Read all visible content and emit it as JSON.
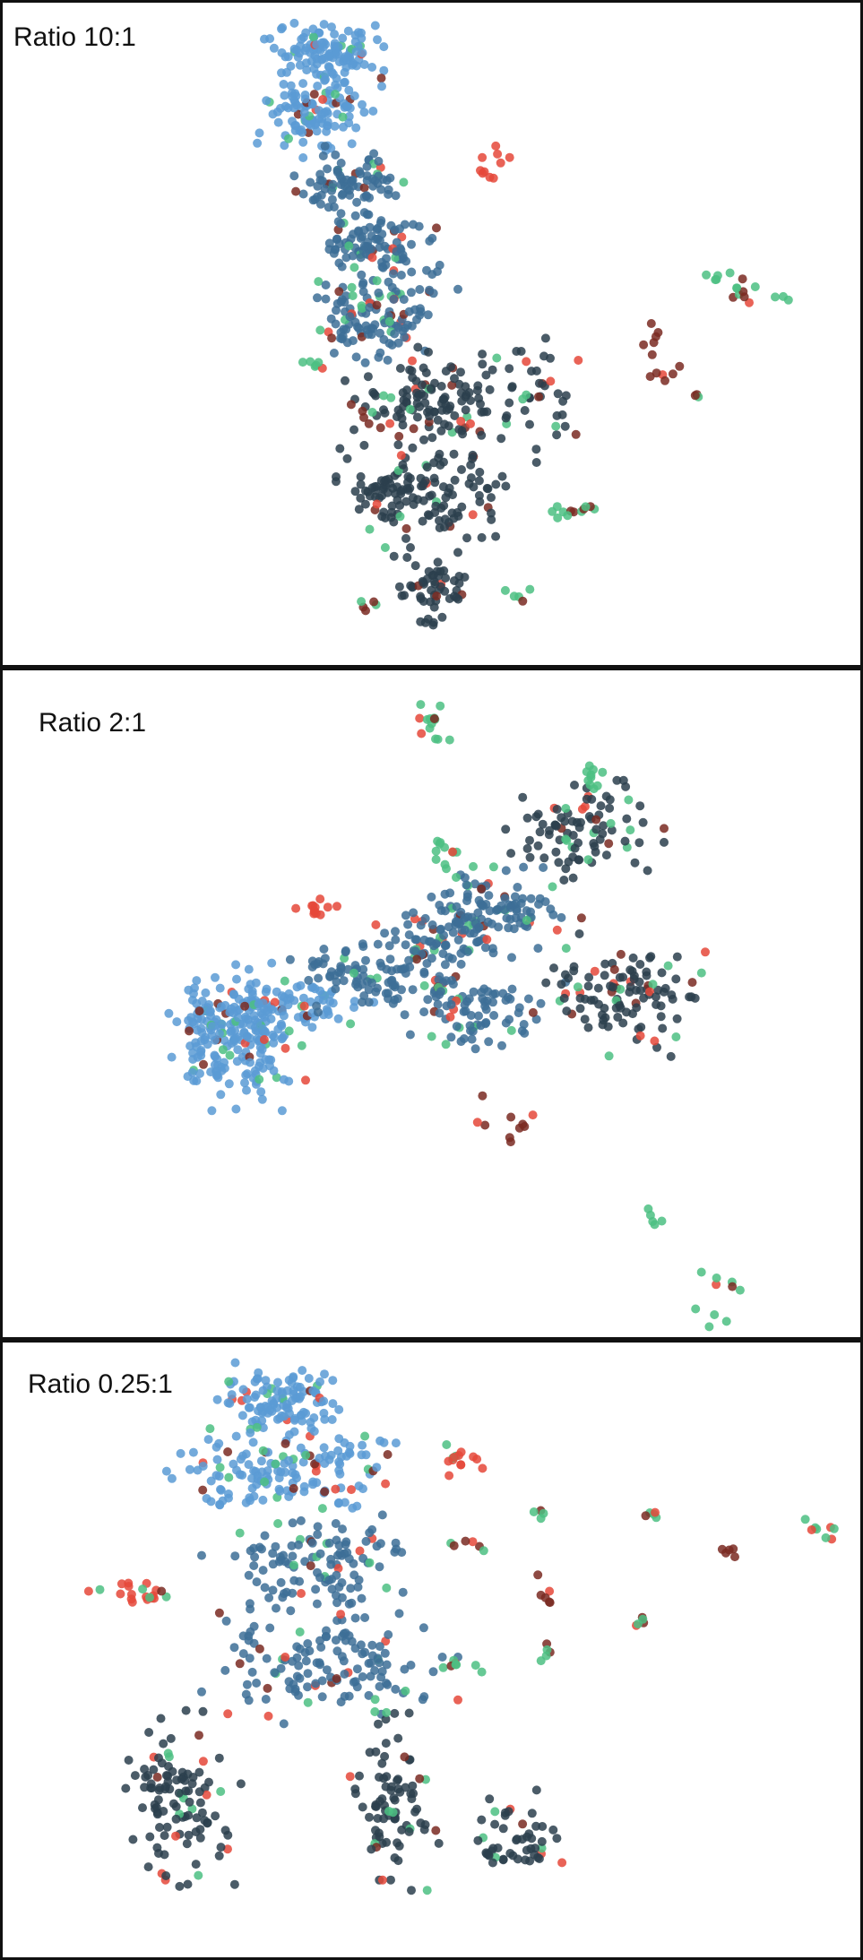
{
  "colors": {
    "early": "#5b9bd5",
    "mid": "#3d6f96",
    "late": "#2b3f4e",
    "red": "#e5483a",
    "darkred": "#7a2a22",
    "green": "#4cbf82"
  },
  "chart_data": [
    {
      "type": "scatter",
      "label": "Ratio 10:1",
      "grid": false,
      "xlim": [
        0,
        963
      ],
      "ylim": [
        0,
        745
      ],
      "clusters": [
        {
          "x": [
            300,
            420
          ],
          "y": [
            25,
            85
          ],
          "n": 110,
          "series": "early",
          "accent": 0.12
        },
        {
          "x": [
            285,
            415
          ],
          "y": [
            80,
            165
          ],
          "n": 120,
          "series": "early",
          "accent": 0.12
        },
        {
          "x": [
            320,
            440
          ],
          "y": [
            160,
            235
          ],
          "n": 80,
          "series": "mid",
          "accent": 0.12
        },
        {
          "x": [
            355,
            480
          ],
          "y": [
            230,
            310
          ],
          "n": 95,
          "series": "mid",
          "accent": 0.18
        },
        {
          "x": [
            340,
            500
          ],
          "y": [
            300,
            400
          ],
          "n": 120,
          "series": "mid",
          "accent": 0.2
        },
        {
          "x": [
            390,
            580
          ],
          "y": [
            390,
            500
          ],
          "n": 130,
          "series": "late",
          "accent": 0.14
        },
        {
          "x": [
            380,
            575
          ],
          "y": [
            495,
            600
          ],
          "n": 140,
          "series": "late",
          "accent": 0.12
        },
        {
          "x": [
            430,
            520
          ],
          "y": [
            600,
            700
          ],
          "n": 55,
          "series": "late",
          "accent": 0.1
        },
        {
          "x": [
            560,
            640
          ],
          "y": [
            375,
            520
          ],
          "n": 30,
          "series": "late",
          "accent": 0.25
        },
        {
          "x": [
            520,
            570
          ],
          "y": [
            145,
            215
          ],
          "n": 10,
          "series": "red",
          "accent": 0.1
        },
        {
          "x": [
            330,
            360
          ],
          "y": [
            395,
            410
          ],
          "n": 6,
          "series": "green",
          "accent": 0.5
        },
        {
          "x": [
            620,
            660
          ],
          "y": [
            560,
            575
          ],
          "n": 7,
          "series": "darkred",
          "accent": 0.5
        },
        {
          "x": [
            710,
            740
          ],
          "y": [
            365,
            395
          ],
          "n": 6,
          "series": "darkred",
          "accent": 0.5
        },
        {
          "x": [
            720,
            760
          ],
          "y": [
            405,
            430
          ],
          "n": 6,
          "series": "darkred",
          "accent": 0.4
        },
        {
          "x": [
            780,
            830
          ],
          "y": [
            300,
            325
          ],
          "n": 7,
          "series": "green",
          "accent": 0.5
        },
        {
          "x": [
            810,
            850
          ],
          "y": [
            300,
            345
          ],
          "n": 7,
          "series": "darkred",
          "accent": 0.5
        },
        {
          "x": [
            860,
            880
          ],
          "y": [
            325,
            335
          ],
          "n": 3,
          "series": "green",
          "accent": 0.3
        },
        {
          "x": [
            770,
            785
          ],
          "y": [
            435,
            450
          ],
          "n": 3,
          "series": "darkred",
          "accent": 0.3
        },
        {
          "x": [
            380,
            420
          ],
          "y": [
            440,
            480
          ],
          "n": 6,
          "series": "darkred",
          "accent": 0.4
        },
        {
          "x": [
            600,
            660
          ],
          "y": [
            560,
            580
          ],
          "n": 5,
          "series": "green",
          "accent": 0.4
        },
        {
          "x": [
            390,
            420
          ],
          "y": [
            665,
            685
          ],
          "n": 5,
          "series": "darkred",
          "accent": 0.3
        },
        {
          "x": [
            560,
            590
          ],
          "y": [
            650,
            675
          ],
          "n": 5,
          "series": "green",
          "accent": 0.4
        }
      ]
    },
    {
      "type": "scatter",
      "label": "Ratio 2:1",
      "grid": false,
      "xlim": [
        0,
        963
      ],
      "ylim": [
        0,
        745
      ],
      "clusters": [
        {
          "x": [
            190,
            330
          ],
          "y": [
            330,
            480
          ],
          "n": 230,
          "series": "early",
          "accent": 0.12
        },
        {
          "x": [
            250,
            420
          ],
          "y": [
            340,
            410
          ],
          "n": 60,
          "series": "early",
          "accent": 0.12
        },
        {
          "x": [
            320,
            480
          ],
          "y": [
            300,
            380
          ],
          "n": 80,
          "series": "mid",
          "accent": 0.14
        },
        {
          "x": [
            420,
            560
          ],
          "y": [
            250,
            340
          ],
          "n": 90,
          "series": "mid",
          "accent": 0.14
        },
        {
          "x": [
            480,
            640
          ],
          "y": [
            220,
            300
          ],
          "n": 90,
          "series": "mid",
          "accent": 0.14
        },
        {
          "x": [
            560,
            730
          ],
          "y": [
            130,
            230
          ],
          "n": 90,
          "series": "late",
          "accent": 0.18
        },
        {
          "x": [
            430,
            620
          ],
          "y": [
            330,
            420
          ],
          "n": 90,
          "series": "mid",
          "accent": 0.14
        },
        {
          "x": [
            600,
            780
          ],
          "y": [
            300,
            430
          ],
          "n": 110,
          "series": "late",
          "accent": 0.18
        },
        {
          "x": [
            460,
            510
          ],
          "y": [
            25,
            95
          ],
          "n": 14,
          "series": "green",
          "accent": 0.35
        },
        {
          "x": [
            640,
            670
          ],
          "y": [
            95,
            140
          ],
          "n": 10,
          "series": "green",
          "accent": 0.3
        },
        {
          "x": [
            325,
            385
          ],
          "y": [
            255,
            275
          ],
          "n": 12,
          "series": "red",
          "accent": 0.1
        },
        {
          "x": [
            470,
            520
          ],
          "y": [
            170,
            230
          ],
          "n": 12,
          "series": "green",
          "accent": 0.4
        },
        {
          "x": [
            530,
            600
          ],
          "y": [
            475,
            530
          ],
          "n": 10,
          "series": "darkred",
          "accent": 0.4
        },
        {
          "x": [
            720,
            740
          ],
          "y": [
            595,
            625
          ],
          "n": 5,
          "series": "green",
          "accent": 0.2
        },
        {
          "x": [
            775,
            845
          ],
          "y": [
            665,
            730
          ],
          "n": 10,
          "series": "green",
          "accent": 0.45
        }
      ]
    },
    {
      "type": "scatter",
      "label": "Ratio 0.25:1",
      "grid": false,
      "xlim": [
        0,
        963
      ],
      "ylim": [
        0,
        745
      ],
      "clusters": [
        {
          "x": [
            240,
            380
          ],
          "y": [
            30,
            110
          ],
          "n": 110,
          "series": "early",
          "accent": 0.12
        },
        {
          "x": [
            190,
            440
          ],
          "y": [
            100,
            210
          ],
          "n": 150,
          "series": "early",
          "accent": 0.2
        },
        {
          "x": [
            230,
            470
          ],
          "y": [
            210,
            330
          ],
          "n": 120,
          "series": "mid",
          "accent": 0.14
        },
        {
          "x": [
            230,
            500
          ],
          "y": [
            330,
            450
          ],
          "n": 130,
          "series": "mid",
          "accent": 0.18
        },
        {
          "x": [
            140,
            260
          ],
          "y": [
            450,
            650
          ],
          "n": 110,
          "series": "late",
          "accent": 0.16
        },
        {
          "x": [
            390,
            480
          ],
          "y": [
            450,
            650
          ],
          "n": 85,
          "series": "late",
          "accent": 0.16
        },
        {
          "x": [
            520,
            640
          ],
          "y": [
            540,
            640
          ],
          "n": 50,
          "series": "late",
          "accent": 0.16
        },
        {
          "x": [
            100,
            210
          ],
          "y": [
            285,
            325
          ],
          "n": 20,
          "series": "red",
          "accent": 0.5
        },
        {
          "x": [
            490,
            545
          ],
          "y": [
            120,
            155
          ],
          "n": 14,
          "series": "red",
          "accent": 0.1
        },
        {
          "x": [
            590,
            610
          ],
          "y": [
            200,
            210
          ],
          "n": 4,
          "series": "green",
          "accent": 0.3
        },
        {
          "x": [
            590,
            620
          ],
          "y": [
            275,
            315
          ],
          "n": 6,
          "series": "darkred",
          "accent": 0.4
        },
        {
          "x": [
            595,
            615
          ],
          "y": [
            360,
            380
          ],
          "n": 5,
          "series": "green",
          "accent": 0.4
        },
        {
          "x": [
            700,
            720
          ],
          "y": [
            325,
            345
          ],
          "n": 5,
          "series": "darkred",
          "accent": 0.4
        },
        {
          "x": [
            710,
            740
          ],
          "y": [
            200,
            220
          ],
          "n": 5,
          "series": "green",
          "accent": 0.5
        },
        {
          "x": [
            800,
            820
          ],
          "y": [
            245,
            265
          ],
          "n": 5,
          "series": "darkred",
          "accent": 0.4
        },
        {
          "x": [
            890,
            950
          ],
          "y": [
            205,
            240
          ],
          "n": 8,
          "series": "green",
          "accent": 0.5
        },
        {
          "x": [
            500,
            545
          ],
          "y": [
            235,
            255
          ],
          "n": 6,
          "series": "darkred",
          "accent": 0.4
        },
        {
          "x": [
            480,
            540
          ],
          "y": [
            380,
            400
          ],
          "n": 8,
          "series": "green",
          "accent": 0.5
        }
      ]
    }
  ]
}
